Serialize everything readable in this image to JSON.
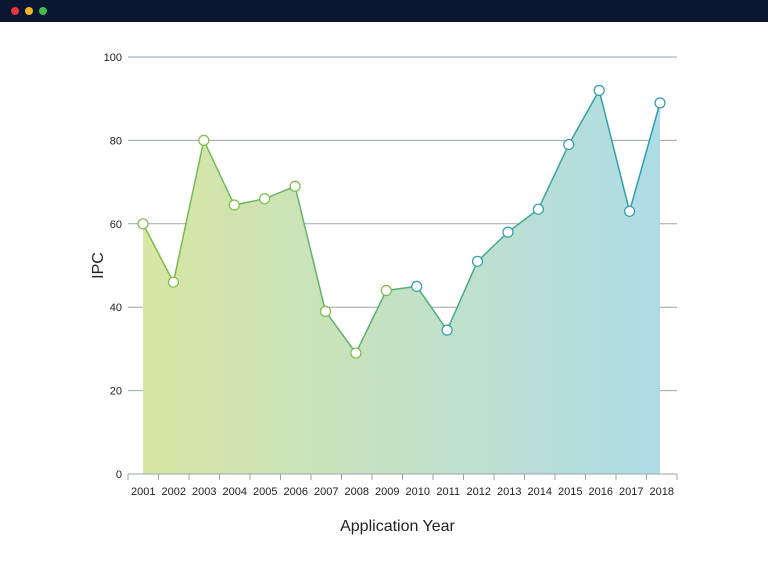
{
  "window": {
    "controls": [
      "close",
      "minimize",
      "maximize"
    ],
    "control_colors": {
      "close": "#e5353b",
      "minimize": "#f1b52c",
      "maximize": "#3dbf4e"
    },
    "titlebar_color": "#0b1631"
  },
  "chart_data": {
    "type": "area",
    "title": "",
    "xlabel": "Application Year",
    "ylabel": "IPC",
    "categories": [
      "2001",
      "2002",
      "2003",
      "2004",
      "2005",
      "2006",
      "2007",
      "2008",
      "2009",
      "2010",
      "2011",
      "2012",
      "2013",
      "2014",
      "2015",
      "2016",
      "2017",
      "2018"
    ],
    "series": [
      {
        "values": [
          60,
          46,
          80,
          64.5,
          66,
          69,
          39,
          29,
          44,
          45,
          34.5,
          51,
          58,
          63.5,
          79,
          92,
          63,
          89
        ]
      }
    ],
    "ylim": [
      0,
      100
    ],
    "yticks": [
      0,
      20,
      40,
      60,
      80,
      100
    ],
    "grid": true,
    "legend": "none",
    "colors": {
      "gradient_start": "#d8e6a3",
      "gradient_end": "#aedce6",
      "line_start": "#7bbf45",
      "line_end": "#2a9db0",
      "grid": "#9aa3ab",
      "marker_fill": "#ffffff"
    }
  }
}
